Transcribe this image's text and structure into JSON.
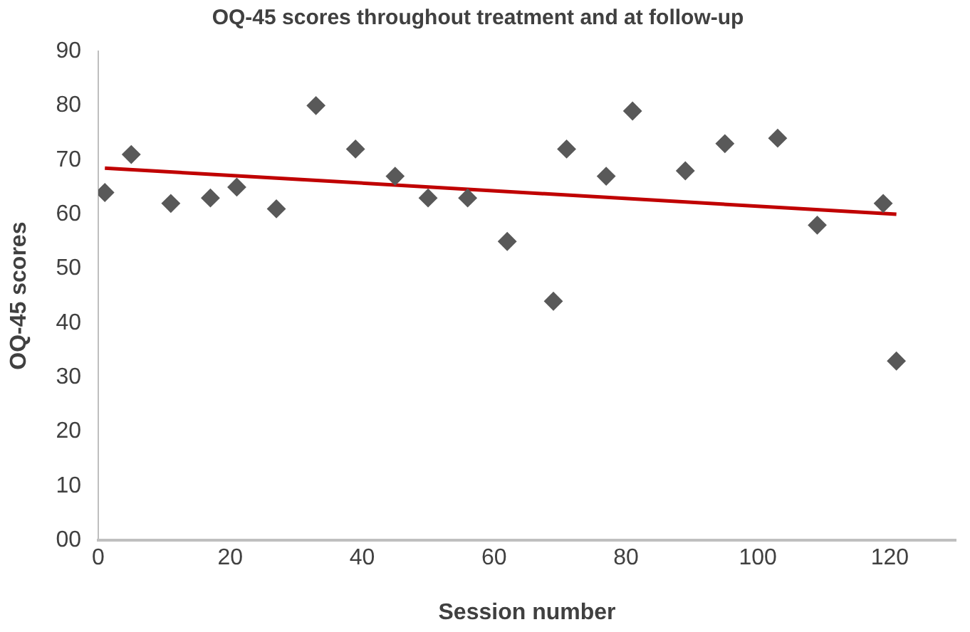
{
  "chart_data": {
    "type": "scatter",
    "title": "OQ-45 scores throughout treatment and at follow-up",
    "xlabel": "Session number",
    "ylabel": "OQ-45 scores",
    "xlim": [
      0,
      130
    ],
    "xticks": [
      0,
      20,
      40,
      60,
      80,
      100,
      120
    ],
    "ylim": [
      0,
      90
    ],
    "yticks": [
      {
        "value": 0,
        "label": "00"
      },
      10,
      20,
      30,
      40,
      50,
      60,
      70,
      80,
      90
    ],
    "grid": false,
    "legend": false,
    "marker": "diamond",
    "series": [
      {
        "color": "#595959",
        "x": [
          1,
          5,
          11,
          17,
          21,
          27,
          33,
          39,
          45,
          50,
          56,
          62,
          69,
          71,
          77,
          81,
          89,
          95,
          103,
          109,
          119,
          121
        ],
        "values": [
          64,
          71,
          62,
          63,
          65,
          61,
          80,
          72,
          67,
          63,
          63,
          55,
          44,
          72,
          67,
          79,
          68,
          73,
          74,
          58,
          62,
          33
        ]
      },
      {
        "type": "line",
        "color": "#c00000",
        "marker": "none",
        "x": [
          1,
          121
        ],
        "values": [
          68.5,
          60
        ]
      }
    ]
  }
}
